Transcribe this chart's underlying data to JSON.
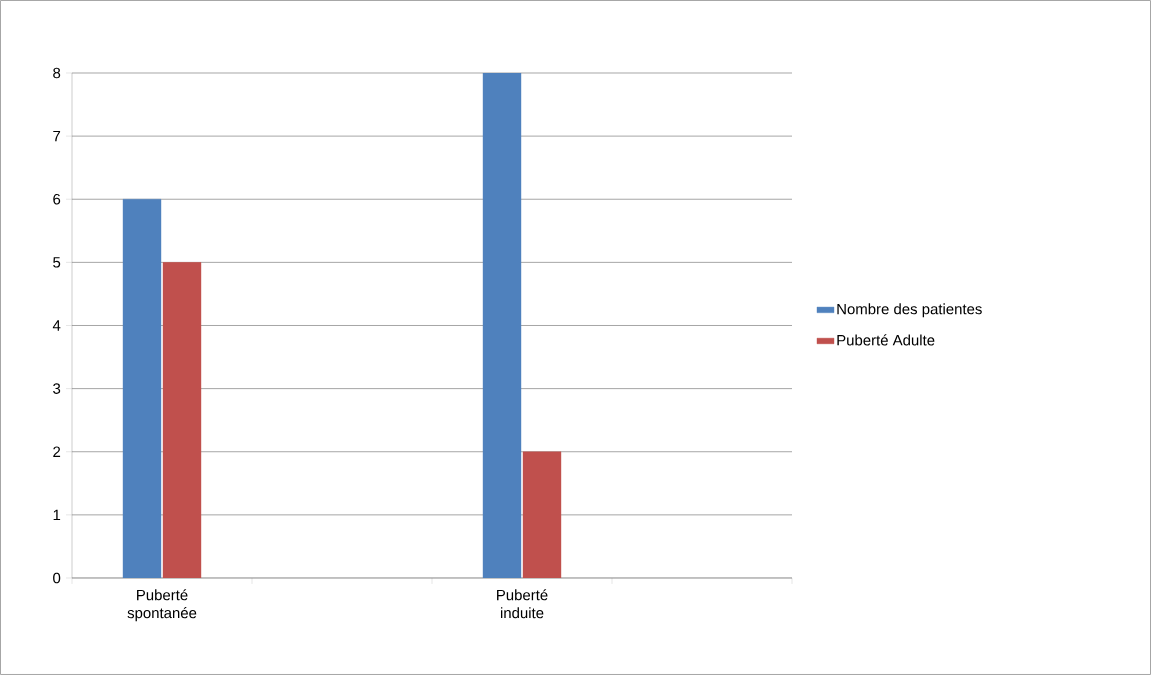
{
  "chart_data": {
    "type": "bar",
    "categories": [
      "Puberté spontanée",
      null,
      "Puberté induite",
      null
    ],
    "series": [
      {
        "name": "Nombre des patientes",
        "color": "#4f81bd",
        "values": [
          6,
          null,
          8,
          null
        ]
      },
      {
        "name": "Puberté Adulte",
        "color": "#c0504d",
        "values": [
          5,
          null,
          2,
          null
        ]
      }
    ],
    "ylim": [
      0,
      8
    ],
    "yticks": [
      0,
      1,
      2,
      3,
      4,
      5,
      6,
      7,
      8
    ],
    "grid": "y",
    "legend": "right"
  }
}
